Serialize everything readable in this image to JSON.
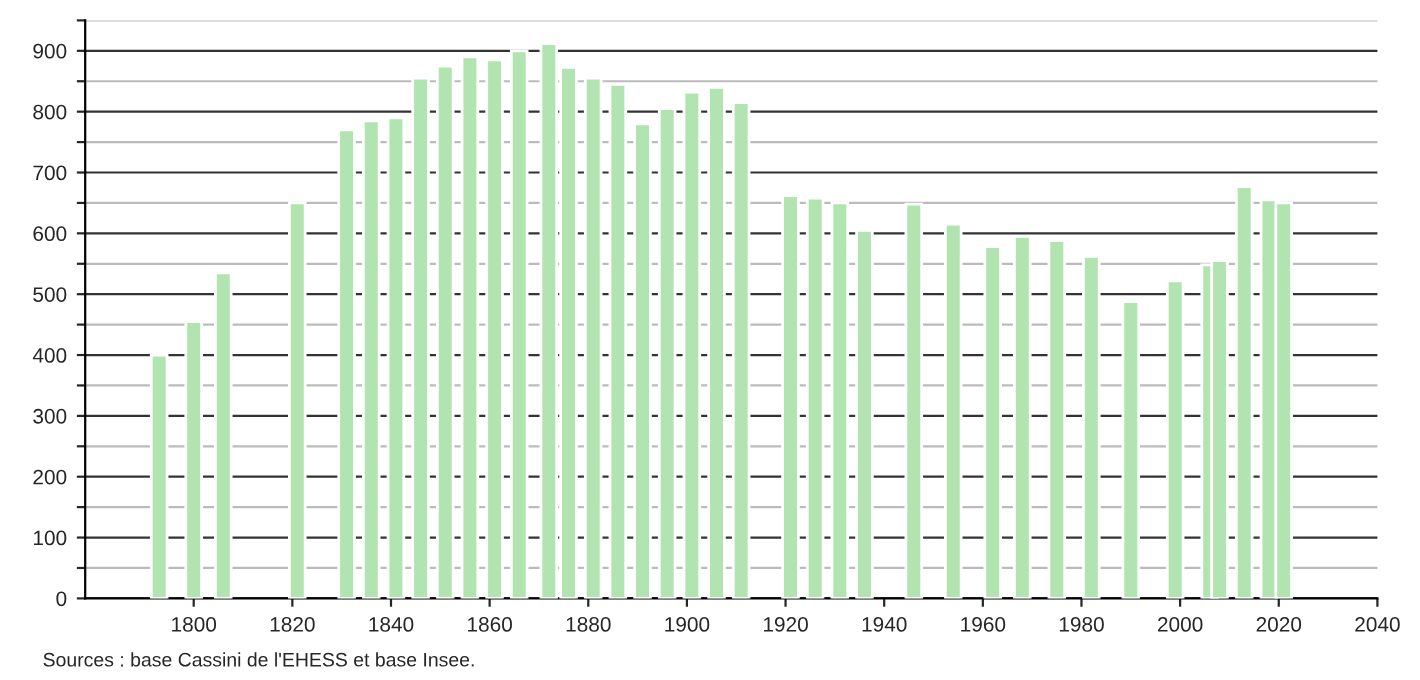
{
  "chart_data": {
    "type": "bar",
    "x": [
      1793,
      1800,
      1806,
      1821,
      1831,
      1836,
      1841,
      1846,
      1851,
      1856,
      1861,
      1866,
      1872,
      1876,
      1881,
      1886,
      1891,
      1896,
      1901,
      1906,
      1911,
      1921,
      1926,
      1931,
      1936,
      1946,
      1954,
      1962,
      1968,
      1975,
      1982,
      1990,
      1999,
      2006,
      2008,
      2013,
      2018,
      2021
    ],
    "values": [
      400,
      455,
      535,
      650,
      770,
      785,
      790,
      855,
      875,
      890,
      885,
      900,
      912,
      873,
      855,
      845,
      780,
      805,
      832,
      840,
      815,
      662,
      658,
      650,
      605,
      648,
      615,
      578,
      595,
      588,
      562,
      488,
      522,
      548,
      555,
      677,
      655,
      650
    ],
    "color": "#b2e4b2",
    "xlim": [
      1778,
      2040
    ],
    "xticks": [
      1800,
      1820,
      1840,
      1860,
      1880,
      1900,
      1920,
      1940,
      1960,
      1980,
      2000,
      2020,
      2040
    ],
    "ylim": [
      0,
      950
    ],
    "yticks": [
      0,
      {
        "value": 50,
        "label": null
      },
      100,
      {
        "value": 150,
        "label": null
      },
      200,
      {
        "value": 250,
        "label": null
      },
      300,
      {
        "value": 350,
        "label": null
      },
      400,
      {
        "value": 450,
        "label": null
      },
      500,
      {
        "value": 550,
        "label": null
      },
      600,
      {
        "value": 650,
        "label": null
      },
      700,
      {
        "value": 750,
        "label": null
      },
      800,
      {
        "value": 850,
        "label": null
      },
      900,
      {
        "value": 950,
        "label": null
      }
    ],
    "grid": "y",
    "annotations": [
      "Sources : base Cassini de l'EHESS et base Insee."
    ]
  }
}
